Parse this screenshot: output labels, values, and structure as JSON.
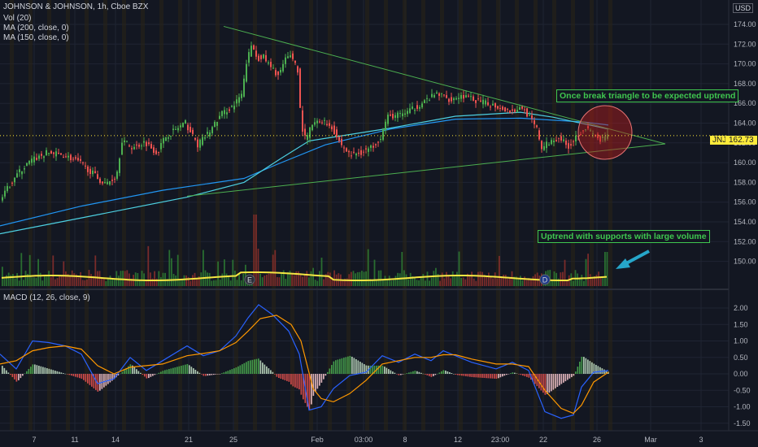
{
  "header": {
    "symbol_line": "JOHNSON & JOHNSON, 1h, Cboe BZX",
    "vol_indicator": "Vol (20)",
    "ma1_indicator": "MA (200, close, 0)",
    "ma2_indicator": "MA (150, close, 0)",
    "currency": "USD"
  },
  "price_tag": {
    "ticker": "JNJ",
    "value": "162.73"
  },
  "annotations": {
    "triangle_note": "Once break triangle to be expected uptrend",
    "volume_note": "Uptrend with supports with large volume"
  },
  "markers": {
    "earnings": "E",
    "dividend": "D"
  },
  "colors": {
    "background": "#131722",
    "up": "#26a69a",
    "up_candle": "#4caf50",
    "down": "#ef5350",
    "ma200": "#2196f3",
    "ma150": "#4dd0e1",
    "volume_ma": "#f5e642",
    "trendline": "#4caf50",
    "macd_line": "#2962ff",
    "signal_line": "#ff9800",
    "annotation": "#3fc64f",
    "circle": "#b71c1c"
  },
  "chart_data": [
    {
      "type": "candlestick",
      "title": "JOHNSON & JOHNSON, 1h, Cboe BZX",
      "x_tick_labels": [
        "7",
        "11",
        "14",
        "21",
        "25",
        "Feb",
        "03:00",
        "8",
        "12",
        "23:00",
        "22",
        "26",
        "Mar",
        "3"
      ],
      "y_tick_labels": [
        "150.00",
        "152.00",
        "154.00",
        "156.00",
        "158.00",
        "160.00",
        "162.00",
        "164.00",
        "166.00",
        "168.00",
        "170.00",
        "172.00",
        "174.00"
      ],
      "ylim": [
        148.5,
        175.5
      ],
      "last_price": 162.73,
      "price_path": [
        [
          0,
          155.8
        ],
        [
          20,
          158.6
        ],
        [
          40,
          160.2
        ],
        [
          60,
          161.0
        ],
        [
          80,
          160.8
        ],
        [
          100,
          160.0
        ],
        [
          115,
          159.0
        ],
        [
          130,
          157.8
        ],
        [
          145,
          158.6
        ],
        [
          152,
          162.3
        ],
        [
          165,
          161.5
        ],
        [
          180,
          162.1
        ],
        [
          195,
          161.0
        ],
        [
          205,
          162.6
        ],
        [
          215,
          163.2
        ],
        [
          230,
          164.0
        ],
        [
          245,
          161.8
        ],
        [
          260,
          163.2
        ],
        [
          275,
          165.0
        ],
        [
          290,
          165.8
        ],
        [
          300,
          167.0
        ],
        [
          305,
          170.2
        ],
        [
          312,
          172.0
        ],
        [
          318,
          170.5
        ],
        [
          325,
          170.8
        ],
        [
          335,
          169.6
        ],
        [
          345,
          168.8
        ],
        [
          352,
          170.3
        ],
        [
          360,
          171.0
        ],
        [
          368,
          169.4
        ],
        [
          372,
          164.0
        ],
        [
          378,
          162.2
        ],
        [
          385,
          163.8
        ],
        [
          398,
          164.3
        ],
        [
          410,
          163.6
        ],
        [
          420,
          162.0
        ],
        [
          432,
          160.8
        ],
        [
          445,
          161.0
        ],
        [
          458,
          161.5
        ],
        [
          470,
          162.6
        ],
        [
          478,
          164.6
        ],
        [
          490,
          164.8
        ],
        [
          505,
          165.2
        ],
        [
          520,
          166.0
        ],
        [
          540,
          167.0
        ],
        [
          555,
          166.4
        ],
        [
          570,
          166.8
        ],
        [
          590,
          166.2
        ],
        [
          610,
          165.8
        ],
        [
          630,
          165.2
        ],
        [
          645,
          165.6
        ],
        [
          655,
          164.3
        ],
        [
          662,
          163.4
        ],
        [
          668,
          161.5
        ],
        [
          680,
          162.2
        ],
        [
          690,
          162.6
        ],
        [
          700,
          161.6
        ],
        [
          705,
          162.0
        ],
        [
          712,
          162.9
        ],
        [
          722,
          163.5
        ],
        [
          732,
          162.8
        ],
        [
          740,
          162.2
        ],
        [
          748,
          162.73
        ]
      ],
      "series": [
        {
          "name": "MA (200, close, 0)",
          "points": [
            [
              0,
              153.6
            ],
            [
              100,
              155.6
            ],
            [
              200,
              157.2
            ],
            [
              300,
              158.4
            ],
            [
              340,
              159.8
            ],
            [
              400,
              161.8
            ],
            [
              480,
              163.4
            ],
            [
              560,
              164.4
            ],
            [
              640,
              164.5
            ],
            [
              720,
              164.1
            ],
            [
              748,
              163.8
            ]
          ]
        },
        {
          "name": "MA (150, close, 0)",
          "points": [
            [
              0,
              152.8
            ],
            [
              100,
              154.4
            ],
            [
              230,
              156.5
            ],
            [
              300,
              158.0
            ],
            [
              345,
              160.4
            ],
            [
              380,
              162.2
            ],
            [
              480,
              163.5
            ],
            [
              560,
              164.7
            ],
            [
              640,
              165.1
            ],
            [
              680,
              164.6
            ],
            [
              748,
              163.4
            ]
          ]
        }
      ],
      "trendlines": [
        {
          "from": [
            275,
            173.8
          ],
          "to": [
            818,
            161.9
          ]
        },
        {
          "from": [
            230,
            156.6
          ],
          "to": [
            818,
            161.9
          ]
        }
      ]
    },
    {
      "type": "bar",
      "title": "Vol (20)",
      "note": "volume histogram with 20-period volume MA (yellow)"
    },
    {
      "type": "line",
      "title": "MACD (12, 26, close, 9)",
      "y_tick_labels": [
        "-1.50",
        "-1.00",
        "-0.50",
        "0.00",
        "0.50",
        "1.00",
        "1.50",
        "2.00"
      ],
      "ylim": [
        -1.75,
        2.25
      ],
      "series": [
        {
          "name": "MACD",
          "points": [
            [
              0,
              0.6
            ],
            [
              20,
              0.15
            ],
            [
              40,
              1.0
            ],
            [
              60,
              0.95
            ],
            [
              80,
              0.85
            ],
            [
              100,
              0.6
            ],
            [
              120,
              -0.3
            ],
            [
              140,
              -0.15
            ],
            [
              160,
              0.5
            ],
            [
              180,
              0.1
            ],
            [
              200,
              0.4
            ],
            [
              230,
              0.85
            ],
            [
              250,
              0.55
            ],
            [
              270,
              0.7
            ],
            [
              290,
              1.15
            ],
            [
              305,
              1.7
            ],
            [
              318,
              2.1
            ],
            [
              335,
              1.8
            ],
            [
              355,
              1.3
            ],
            [
              368,
              0.6
            ],
            [
              380,
              -1.1
            ],
            [
              395,
              -1.0
            ],
            [
              410,
              -0.45
            ],
            [
              430,
              -0.05
            ],
            [
              450,
              0.05
            ],
            [
              470,
              0.55
            ],
            [
              490,
              0.35
            ],
            [
              510,
              0.6
            ],
            [
              530,
              0.4
            ],
            [
              545,
              0.7
            ],
            [
              560,
              0.55
            ],
            [
              580,
              0.35
            ],
            [
              610,
              0.15
            ],
            [
              630,
              0.35
            ],
            [
              650,
              0.1
            ],
            [
              670,
              -1.15
            ],
            [
              690,
              -1.35
            ],
            [
              705,
              -1.25
            ],
            [
              715,
              -0.4
            ],
            [
              730,
              0.05
            ],
            [
              748,
              0.1
            ]
          ]
        },
        {
          "name": "Signal",
          "points": [
            [
              0,
              0.3
            ],
            [
              20,
              0.4
            ],
            [
              40,
              0.7
            ],
            [
              60,
              0.8
            ],
            [
              80,
              0.85
            ],
            [
              100,
              0.75
            ],
            [
              120,
              0.25
            ],
            [
              140,
              0.0
            ],
            [
              160,
              0.2
            ],
            [
              180,
              0.25
            ],
            [
              200,
              0.3
            ],
            [
              230,
              0.55
            ],
            [
              250,
              0.62
            ],
            [
              270,
              0.7
            ],
            [
              290,
              0.95
            ],
            [
              305,
              1.3
            ],
            [
              320,
              1.68
            ],
            [
              340,
              1.78
            ],
            [
              358,
              1.5
            ],
            [
              370,
              1.0
            ],
            [
              385,
              -0.45
            ],
            [
              395,
              -0.75
            ],
            [
              410,
              -0.85
            ],
            [
              430,
              -0.6
            ],
            [
              450,
              -0.2
            ],
            [
              470,
              0.3
            ],
            [
              490,
              0.4
            ],
            [
              510,
              0.5
            ],
            [
              530,
              0.5
            ],
            [
              545,
              0.58
            ],
            [
              560,
              0.58
            ],
            [
              580,
              0.45
            ],
            [
              610,
              0.3
            ],
            [
              630,
              0.3
            ],
            [
              650,
              0.22
            ],
            [
              670,
              -0.5
            ],
            [
              690,
              -1.05
            ],
            [
              705,
              -1.2
            ],
            [
              715,
              -0.95
            ],
            [
              730,
              -0.25
            ],
            [
              748,
              0.05
            ]
          ]
        }
      ]
    }
  ]
}
